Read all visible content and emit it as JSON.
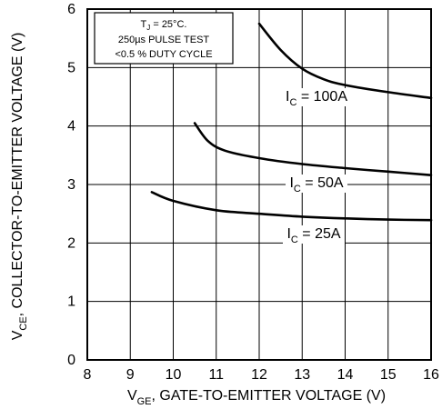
{
  "chart_data": {
    "type": "line",
    "x_label": {
      "main": "V",
      "sub": "GE",
      "rest": ", GATE-TO-EMITTER VOLTAGE (V)"
    },
    "y_label": {
      "main": "V",
      "sub": "CE",
      "rest": ", COLLECTOR-TO-EMITTER VOLTAGE (V)"
    },
    "xlim": [
      8,
      16
    ],
    "ylim": [
      0,
      6
    ],
    "x_ticks": [
      "8",
      "9",
      "10",
      "11",
      "12",
      "13",
      "14",
      "15",
      "16"
    ],
    "y_ticks": [
      "0",
      "1",
      "2",
      "3",
      "4",
      "5",
      "6"
    ],
    "x_tick_values": [
      8,
      9,
      10,
      11,
      12,
      13,
      14,
      15,
      16
    ],
    "y_tick_values": [
      0,
      1,
      2,
      3,
      4,
      5,
      6
    ],
    "grid": true,
    "annotation": {
      "line1_main": "T",
      "line1_sub": "J",
      "line1_rest": " = 25°C.",
      "line2": "250µs PULSE TEST",
      "line3": "<0.5 % DUTY CYCLE"
    },
    "series": [
      {
        "name": "I_C = 100A",
        "label": {
          "main": "I",
          "sub": "C",
          "rest": " = 100A"
        },
        "x": [
          12.0,
          12.5,
          13.0,
          13.5,
          14.0,
          15.0,
          16.0
        ],
        "y": [
          5.75,
          5.3,
          4.98,
          4.8,
          4.7,
          4.58,
          4.48
        ]
      },
      {
        "name": "I_C = 50A",
        "label": {
          "main": "I",
          "sub": "C",
          "rest": " = 50A"
        },
        "x": [
          10.5,
          10.8,
          11.2,
          12.0,
          13.0,
          14.0,
          15.0,
          16.0
        ],
        "y": [
          4.05,
          3.75,
          3.58,
          3.45,
          3.35,
          3.28,
          3.22,
          3.16
        ]
      },
      {
        "name": "I_C = 25A",
        "label": {
          "main": "I",
          "sub": "C",
          "rest": " = 25A"
        },
        "x": [
          9.5,
          10.0,
          11.0,
          12.0,
          13.0,
          14.0,
          15.0,
          16.0
        ],
        "y": [
          2.87,
          2.72,
          2.56,
          2.5,
          2.45,
          2.42,
          2.4,
          2.39
        ]
      }
    ]
  }
}
